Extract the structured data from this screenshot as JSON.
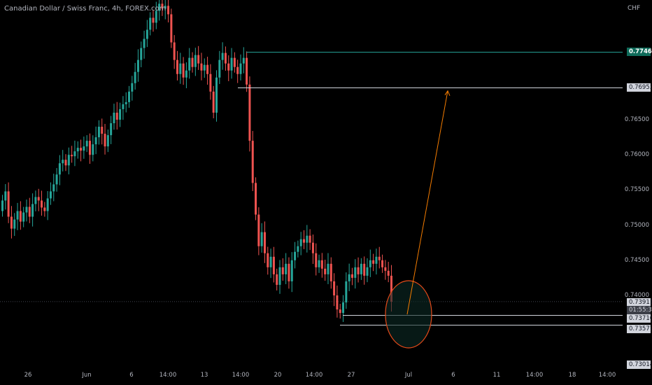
{
  "header": {
    "symbol_title": "Canadian Dollar / Swiss Franc, 4h, FOREX.com",
    "currency": "CHF"
  },
  "y_axis": {
    "ticks": [
      "0.76500",
      "0.76000",
      "0.75500",
      "0.75000",
      "0.74500",
      "0.74000"
    ]
  },
  "x_axis": {
    "ticks": [
      "26",
      "Jun",
      "6",
      "14:00",
      "13",
      "14:00",
      "20",
      "14:00",
      "27",
      "Jul",
      "6",
      "11",
      "14:00",
      "18",
      "14:00"
    ]
  },
  "price_tags": {
    "resistance_high": "0.77460",
    "resistance_low": "0.76953",
    "current_price": "0.73911",
    "countdown": "01:55:33",
    "support_high": "0.73716",
    "support_low": "0.73577",
    "bottom": "0.73014"
  },
  "colors": {
    "bull": "#26a69a",
    "bear": "#ef5350",
    "background": "#000000",
    "resistance_line": "#26a69a",
    "level_line": "#d1d4dc",
    "projection_arrow": "#f57c00",
    "target_circle": "#e64a19"
  },
  "chart_data": {
    "type": "candlestick",
    "instrument": "CADCHF",
    "timeframe": "4h",
    "y_unit": "price",
    "levels": [
      {
        "price": 0.7746,
        "color": "green"
      },
      {
        "price": 0.76953,
        "color": "white"
      },
      {
        "price": 0.73716,
        "color": "white"
      },
      {
        "price": 0.73577,
        "color": "white"
      }
    ],
    "projection": {
      "from_price": 0.7373,
      "to_price": 0.7695
    },
    "last_price": 0.73911,
    "candles_close": [
      0.7535,
      0.7548,
      0.7512,
      0.7495,
      0.7508,
      0.752,
      0.7505,
      0.7518,
      0.7526,
      0.7512,
      0.753,
      0.754,
      0.7535,
      0.7525,
      0.752,
      0.7538,
      0.7548,
      0.7558,
      0.7572,
      0.7588,
      0.7593,
      0.7585,
      0.76,
      0.7598,
      0.7605,
      0.761,
      0.7606,
      0.7612,
      0.762,
      0.76,
      0.7615,
      0.7625,
      0.764,
      0.763,
      0.7612,
      0.7628,
      0.7645,
      0.766,
      0.765,
      0.7665,
      0.7672,
      0.7675,
      0.769,
      0.7702,
      0.7718,
      0.7735,
      0.7752,
      0.7765,
      0.7778,
      0.7795,
      0.7788,
      0.7805,
      0.7815,
      0.7808,
      0.7812,
      0.78,
      0.776,
      0.7735,
      0.7715,
      0.773,
      0.771,
      0.772,
      0.7738,
      0.7725,
      0.7742,
      0.773,
      0.772,
      0.7728,
      0.7715,
      0.769,
      0.766,
      0.771,
      0.7735,
      0.7745,
      0.773,
      0.772,
      0.7738,
      0.7725,
      0.7715,
      0.773,
      0.7738,
      0.77,
      0.762,
      0.756,
      0.7515,
      0.747,
      0.749,
      0.746,
      0.744,
      0.7455,
      0.743,
      0.7415,
      0.744,
      0.743,
      0.7445,
      0.742,
      0.745,
      0.7462,
      0.747,
      0.748,
      0.7475,
      0.7485,
      0.7475,
      0.746,
      0.744,
      0.745,
      0.7438,
      0.743,
      0.7445,
      0.742,
      0.74,
      0.738,
      0.7375,
      0.739,
      0.742,
      0.743,
      0.7425,
      0.744,
      0.743,
      0.7445,
      0.7428,
      0.744,
      0.745,
      0.7445,
      0.7455,
      0.745,
      0.744,
      0.7435,
      0.7428,
      0.7391
    ]
  }
}
